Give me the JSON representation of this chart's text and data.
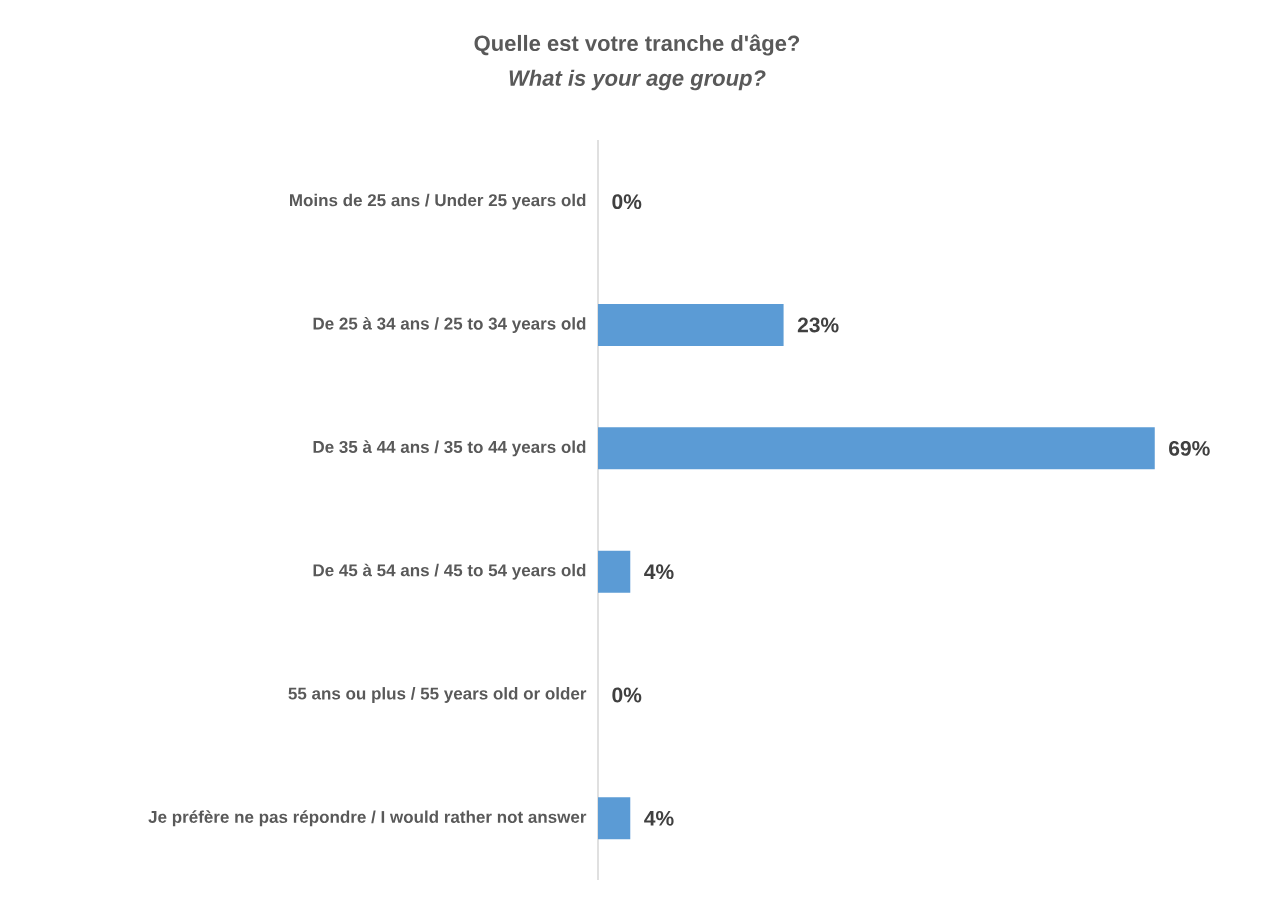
{
  "chart_data": {
    "type": "bar",
    "orientation": "horizontal",
    "title": "Quelle est votre tranche d'âge?",
    "subtitle": "What is your age group?",
    "categories": [
      "Moins de 25 ans / Under 25 years old",
      "De 25 à 34 ans / 25 to 34 years old",
      "De 35 à 44 ans / 35 to 44 years old",
      "De 45 à 54 ans / 45 to 54 years old",
      "55 ans ou plus / 55 years old or older",
      "Je préfère ne pas répondre / I would rather not answer"
    ],
    "values": [
      0,
      23,
      69,
      4,
      0,
      4
    ],
    "value_labels": [
      "0%",
      "23%",
      "69%",
      "4%",
      "0%",
      "4%"
    ],
    "color": "#5b9bd5"
  }
}
